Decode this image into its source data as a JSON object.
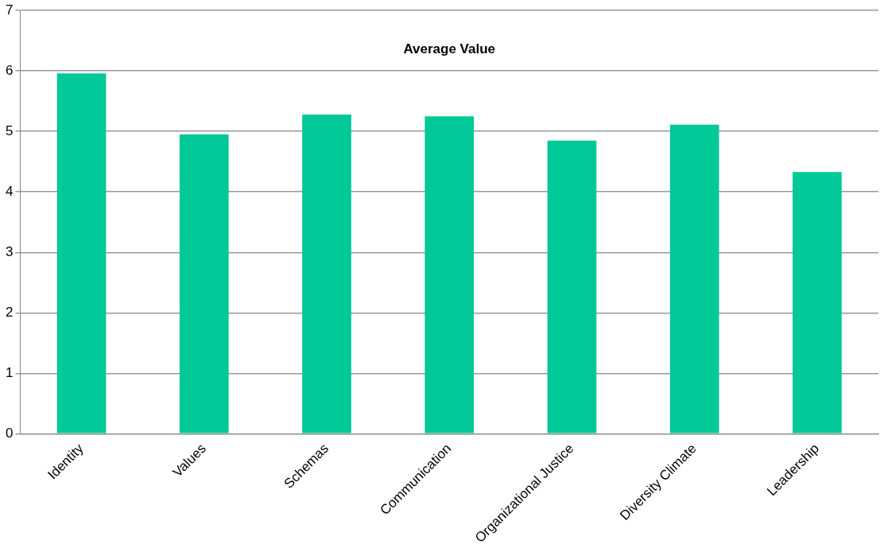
{
  "chart_data": {
    "type": "bar",
    "title": "Average Value",
    "categories": [
      "Identity",
      "Values",
      "Schemas",
      "Communication",
      "Organizational Justice",
      "Diversity Climate",
      "Leadership"
    ],
    "values": [
      5.96,
      4.95,
      5.28,
      5.25,
      4.85,
      5.11,
      4.33
    ],
    "color": "#00c896",
    "ylim": [
      0,
      7
    ],
    "yticks": [
      0,
      1,
      2,
      3,
      4,
      5,
      6,
      7
    ],
    "grid": "y",
    "legend": false
  }
}
